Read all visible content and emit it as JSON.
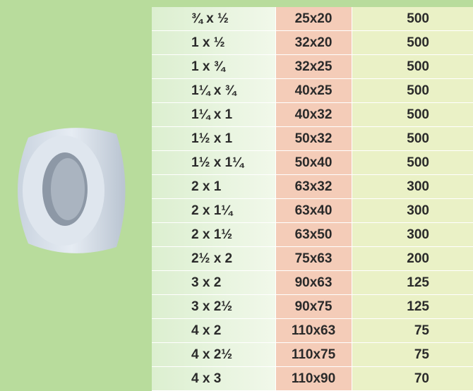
{
  "table": {
    "rows": [
      [
        "¾ x ½",
        "25x20",
        500
      ],
      [
        "1 x ½",
        "32x20",
        500
      ],
      [
        "1 x ¾",
        "32x25",
        500
      ],
      [
        "1¼ x ¾",
        "40x25",
        500
      ],
      [
        "1¼ x 1",
        "40x32",
        500
      ],
      [
        "1½ x 1",
        "50x32",
        500
      ],
      [
        "1½ x 1¼",
        "50x40",
        500
      ],
      [
        "2 x 1",
        "63x32",
        300
      ],
      [
        "2 x 1¼",
        "63x40",
        300
      ],
      [
        "2 x 1½",
        "63x50",
        300
      ],
      [
        "2½ x 2",
        "75x63",
        200
      ],
      [
        "3 x 2",
        "90x63",
        125
      ],
      [
        "3 x 2½",
        "90x75",
        125
      ],
      [
        "4 x 2",
        "110x63",
        75
      ],
      [
        "4 x 2½",
        "110x75",
        75
      ],
      [
        "4 x 3",
        "110x90",
        70
      ]
    ]
  }
}
